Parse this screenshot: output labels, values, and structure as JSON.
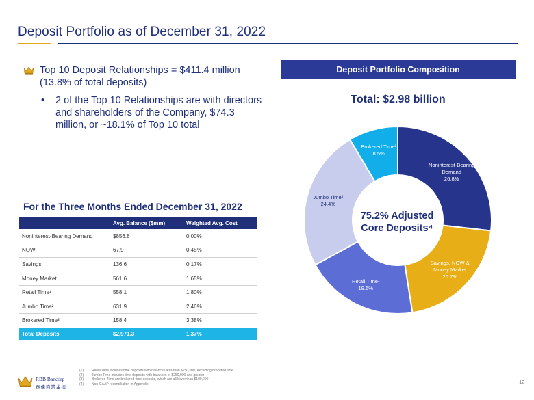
{
  "title": "Deposit Portfolio as of December 31, 2022",
  "bullets": {
    "main": "Top 10 Deposit Relationships = $411.4 million (13.8% of total deposits)",
    "sub": "2 of the Top 10 Relationships are with directors and shareholders of the Company, $74.3 million, or ~18.1% of Top 10 total"
  },
  "table": {
    "title": "For the Three Months Ended December 31, 2022",
    "headers": [
      "",
      "Avg. Balance ($mm)",
      "Weighted Avg. Cost"
    ],
    "rows": [
      [
        "Noninterest-Bearing Demand",
        "$856.8",
        "0.00%"
      ],
      [
        "NOW",
        "67.9",
        "0.45%"
      ],
      [
        "Savings",
        "136.6",
        "0.17%"
      ],
      [
        "Money Market",
        "561.6",
        "1.65%"
      ],
      [
        "Retail Time¹",
        "558.1",
        "1.80%"
      ],
      [
        "Jumbo Time²",
        "631.9",
        "2.46%"
      ],
      [
        "Brokered Time³",
        "158.4",
        "3.38%"
      ]
    ],
    "total": [
      "Total Deposits",
      "$2,971.3",
      "1.37%"
    ]
  },
  "composition": {
    "header": "Deposit Portfolio Composition",
    "total_label": "Total:  $2.98 billion",
    "center_text": "75.2% Adjusted Core Deposits⁴"
  },
  "chart_data": {
    "type": "pie",
    "donut": true,
    "slices": [
      {
        "label": "Noninterest-Bearing Demand",
        "value_label": "26.8%",
        "value": 26.8,
        "color": "#26348c"
      },
      {
        "label": "Savings, NOW & Money Market",
        "value_label": "20.7%",
        "value": 20.7,
        "color": "#e8ae18"
      },
      {
        "label": "Retail Time¹",
        "value_label": "19.6%",
        "value": 19.6,
        "color": "#5c6ed6"
      },
      {
        "label": "Jumbo Time²",
        "value_label": "24.4%",
        "value": 24.4,
        "color": "#c8cdee"
      },
      {
        "label": "Brokered Time³",
        "value_label": "8.5%",
        "value": 8.5,
        "color": "#12aeea"
      }
    ]
  },
  "footnotes": [
    {
      "n": "(1)",
      "text": "Retail Time includes time deposits with balances less than $250,000, excluding brokered time"
    },
    {
      "n": "(2)",
      "text": "Jumbo Time includes time deposits with balances of $250,000 and greater"
    },
    {
      "n": "(3)",
      "text": "Brokered Time are brokered time deposits, which are all lower than $100,000"
    },
    {
      "n": "(4)",
      "text": "Non-GAAP reconciliation in Appendix"
    }
  ],
  "logo": {
    "name": "RBB Bancorp",
    "cn": "泰佳商業金控"
  },
  "page_number": "12",
  "colors": {
    "navy": "#1f2f7a",
    "gold": "#e2a820",
    "cyan": "#1eb4e6"
  }
}
